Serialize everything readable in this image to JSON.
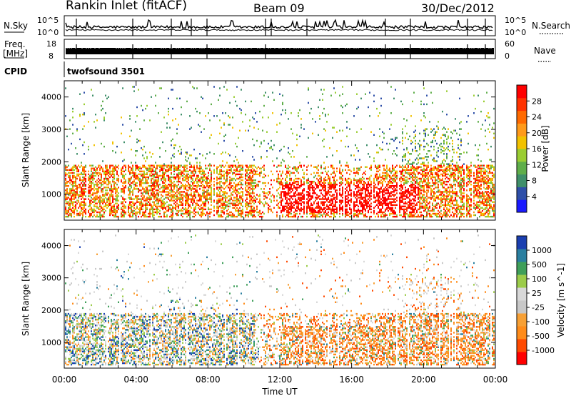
{
  "header": {
    "station": "Rankin Inlet (fitACF)",
    "beam": "Beam 09",
    "date": "30/Dec/2012"
  },
  "params": {
    "nsky_label": "N.Sky",
    "nsky_tick_top": "10^5",
    "nsky_tick_bottom": "10^0",
    "nsearch_label": "N.Search",
    "freq_label_line1": "Freq.",
    "freq_label_line2": "[MHz]",
    "freq_tick_top": "18",
    "freq_tick_bottom": "8",
    "nave_label": "Nave",
    "nave_tick_top": "60",
    "nave_tick_bottom": "0",
    "cpid_label": "CPID",
    "cpid_value": "twofsound 3501"
  },
  "colors": {
    "power_scale": [
      "#1a1aff",
      "#2e4fa8",
      "#3f8f6a",
      "#5fae4a",
      "#9acd32",
      "#f2c200",
      "#ff9a1a",
      "#ff6a00",
      "#ff3300",
      "#ff0000"
    ],
    "velocity_scale": [
      "#ff0000",
      "#ff4a00",
      "#ff8c1a",
      "#f7a035",
      "#c8c8c8",
      "#d8d8d8",
      "#9ccc4a",
      "#3f9f5a",
      "#2a7fa0",
      "#1a3fb0"
    ]
  },
  "chart_data": [
    {
      "type": "heatmap",
      "panel": "power",
      "ylabel": "Slant Range [km]",
      "ylim": [
        200,
        4500
      ],
      "yticks": [
        "1000",
        "2000",
        "3000",
        "4000"
      ],
      "colorbar_label": "Power [dB]",
      "colorbar_ticks": [
        "4",
        "8",
        "12",
        "16",
        "20",
        "24",
        "28"
      ],
      "colorbar_range": [
        0,
        32
      ]
    },
    {
      "type": "heatmap",
      "panel": "velocity",
      "ylabel": "Slant Range [km]",
      "ylim": [
        200,
        4500
      ],
      "yticks": [
        "1000",
        "2000",
        "3000",
        "4000"
      ],
      "colorbar_label": "Velocity [m s^-1]",
      "colorbar_ticks": [
        "-1000",
        "-500",
        "-100",
        "-25",
        "25",
        "100",
        "500",
        "1000"
      ]
    }
  ],
  "xaxis": {
    "label": "Time UT",
    "ticks": [
      "00:00",
      "04:00",
      "08:00",
      "12:00",
      "16:00",
      "20:00",
      "00:00"
    ]
  }
}
